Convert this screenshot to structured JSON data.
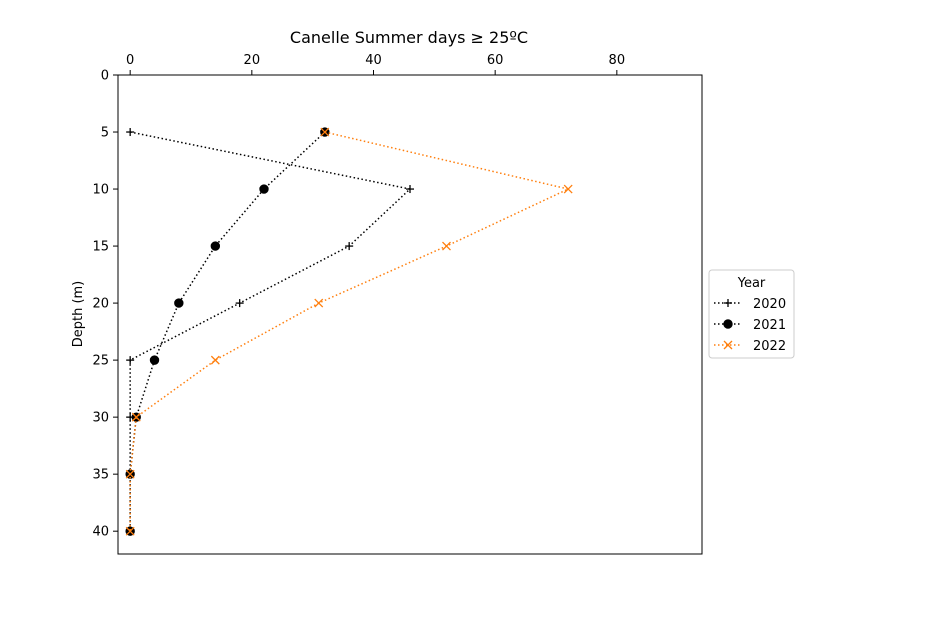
{
  "chart_data": {
    "type": "line",
    "title": "Canelle Summer days ≥ 25ºC",
    "xlabel": "",
    "ylabel": "Depth (m)",
    "x_axis_position": "top",
    "y_axis_inverted": true,
    "xlim": [
      -2,
      94
    ],
    "ylim": [
      0,
      42
    ],
    "x_ticks": [
      0,
      20,
      40,
      60,
      80
    ],
    "y_ticks": [
      0,
      5,
      10,
      15,
      20,
      25,
      30,
      35,
      40
    ],
    "grid": false,
    "legend": {
      "title": "Year",
      "placement": "outside-right"
    },
    "depths": [
      5,
      10,
      15,
      20,
      25,
      30,
      35,
      40
    ],
    "series": [
      {
        "name": "2020",
        "color": "#000000",
        "marker": "plus",
        "line_style": "dotted",
        "values": [
          0,
          46,
          36,
          18,
          0,
          0,
          0,
          0
        ]
      },
      {
        "name": "2021",
        "color": "#000000",
        "marker": "circle",
        "line_style": "dotted",
        "values": [
          32,
          22,
          14,
          8,
          4,
          1,
          0,
          0
        ]
      },
      {
        "name": "2022",
        "color": "#ff7f0e",
        "marker": "x",
        "line_style": "dotted",
        "values": [
          32,
          72,
          52,
          31,
          14,
          1,
          0,
          0
        ]
      }
    ]
  }
}
